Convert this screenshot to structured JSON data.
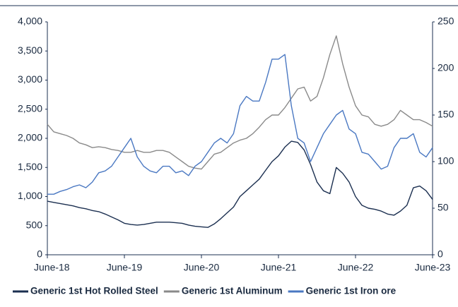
{
  "chart_data": {
    "type": "line",
    "x": [
      "2018-06",
      "2018-07",
      "2018-08",
      "2018-09",
      "2018-10",
      "2018-11",
      "2018-12",
      "2019-01",
      "2019-02",
      "2019-03",
      "2019-04",
      "2019-05",
      "2019-06",
      "2019-07",
      "2019-08",
      "2019-09",
      "2019-10",
      "2019-11",
      "2019-12",
      "2020-01",
      "2020-02",
      "2020-03",
      "2020-04",
      "2020-05",
      "2020-06",
      "2020-07",
      "2020-08",
      "2020-09",
      "2020-10",
      "2020-11",
      "2020-12",
      "2021-01",
      "2021-02",
      "2021-03",
      "2021-04",
      "2021-05",
      "2021-06",
      "2021-07",
      "2021-08",
      "2021-09",
      "2021-10",
      "2021-11",
      "2021-12",
      "2022-01",
      "2022-02",
      "2022-03",
      "2022-04",
      "2022-05",
      "2022-06",
      "2022-07",
      "2022-08",
      "2022-09",
      "2022-10",
      "2022-11",
      "2022-12",
      "2023-01",
      "2023-02",
      "2023-03",
      "2023-04",
      "2023-05",
      "2023-06"
    ],
    "series": [
      {
        "name": "Generic 1st Hot Rolled Steel",
        "color": "#1b2f50",
        "axis": "y",
        "values": [
          920,
          900,
          880,
          860,
          840,
          810,
          790,
          760,
          740,
          700,
          650,
          600,
          540,
          520,
          510,
          520,
          540,
          560,
          560,
          560,
          550,
          540,
          510,
          490,
          480,
          470,
          530,
          620,
          720,
          820,
          1000,
          1100,
          1200,
          1300,
          1450,
          1600,
          1700,
          1850,
          1950,
          1930,
          1800,
          1550,
          1250,
          1100,
          1050,
          1500,
          1400,
          1250,
          1000,
          850,
          800,
          780,
          750,
          700,
          680,
          750,
          850,
          1150,
          1180,
          1100,
          950
        ]
      },
      {
        "name": "Generic 1st Aluminum",
        "color": "#8a8a8a",
        "axis": "y2",
        "values": [
          140,
          132,
          130,
          128,
          125,
          120,
          118,
          115,
          116,
          115,
          113,
          112,
          110,
          110,
          112,
          110,
          110,
          112,
          112,
          110,
          105,
          100,
          95,
          93,
          92,
          100,
          108,
          110,
          115,
          120,
          123,
          125,
          130,
          137,
          145,
          150,
          150,
          158,
          168,
          178,
          180,
          165,
          170,
          190,
          215,
          235,
          205,
          180,
          160,
          150,
          148,
          140,
          138,
          140,
          145,
          155,
          150,
          145,
          145,
          142,
          138
        ]
      },
      {
        "name": "Generic 1st Iron ore",
        "color": "#4a78c2",
        "axis": "y2",
        "values": [
          65,
          65,
          68,
          70,
          73,
          75,
          72,
          78,
          88,
          90,
          95,
          105,
          115,
          125,
          105,
          95,
          90,
          88,
          95,
          95,
          88,
          90,
          85,
          95,
          100,
          110,
          120,
          125,
          120,
          130,
          160,
          170,
          165,
          165,
          185,
          210,
          210,
          215,
          160,
          125,
          120,
          100,
          115,
          130,
          140,
          150,
          155,
          135,
          130,
          110,
          108,
          100,
          92,
          95,
          115,
          125,
          125,
          130,
          110,
          105,
          115
        ]
      }
    ],
    "xlim": [
      "2018-06",
      "2023-06"
    ],
    "xticks": [
      {
        "value": "2018-06",
        "label": "June-18"
      },
      {
        "value": "2019-06",
        "label": "June-19"
      },
      {
        "value": "2020-06",
        "label": "June-20"
      },
      {
        "value": "2021-06",
        "label": "June-21"
      },
      {
        "value": "2022-06",
        "label": "June-22"
      },
      {
        "value": "2023-06",
        "label": "June-23"
      }
    ],
    "ylim": [
      0,
      4000
    ],
    "yticks": [
      0,
      500,
      {
        "value": 1000,
        "label": "1,000"
      },
      {
        "value": 1500,
        "label": "1,500"
      },
      {
        "value": 2000,
        "label": "2,000"
      },
      {
        "value": 2500,
        "label": "2,500"
      },
      {
        "value": 3000,
        "label": "3,000"
      },
      {
        "value": 3500,
        "label": "3,500"
      },
      {
        "value": 4000,
        "label": "4,000"
      }
    ],
    "y2lim": [
      0,
      250
    ],
    "y2ticks": [
      0,
      50,
      100,
      150,
      200,
      250
    ],
    "legend": "bottom"
  }
}
